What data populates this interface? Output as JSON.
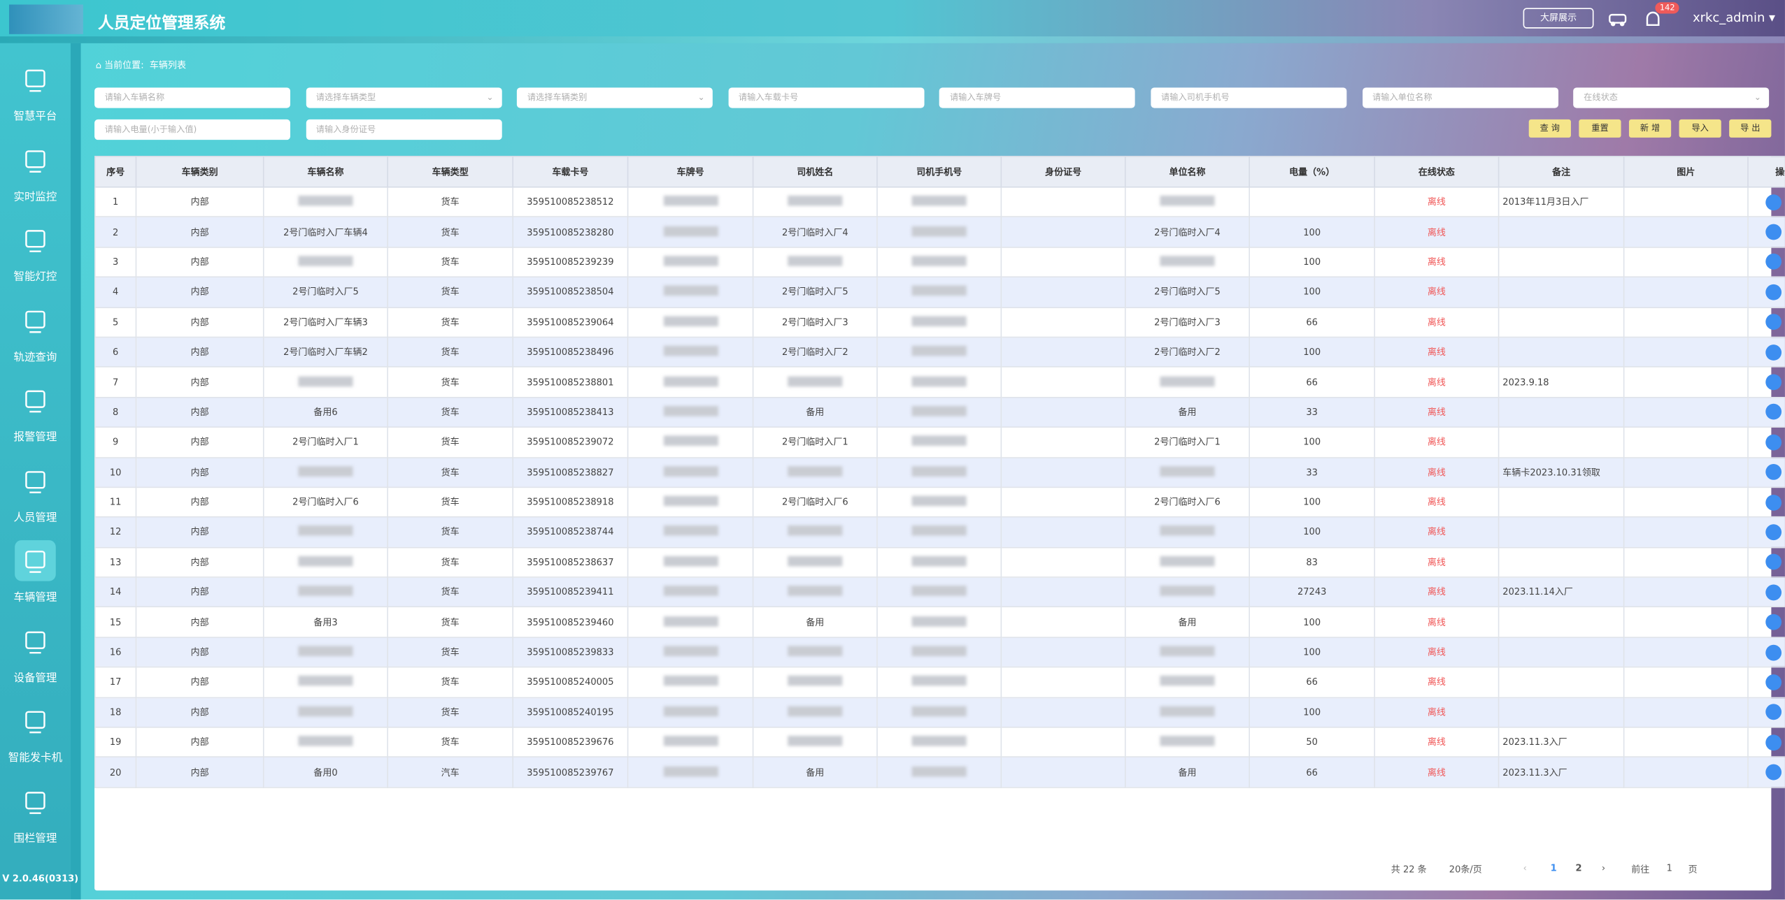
{
  "header": {
    "title": "人员定位管理系统",
    "screen_button": "大屏展示",
    "alarm_count": "142",
    "user": "xrkc_admin"
  },
  "sidebar": {
    "items": [
      "智慧平台",
      "实时监控",
      "智能灯控",
      "轨迹查询",
      "报警管理",
      "人员管理",
      "车辆管理",
      "设备管理",
      "智能发卡机",
      "围栏管理"
    ],
    "version": "V 2.0.46(0313)"
  },
  "breadcrumb": {
    "label": "当前位置:",
    "current": "车辆列表"
  },
  "filters": [
    "请输入车辆名称",
    "请选择车辆类型",
    "请选择车辆类别",
    "请输入车载卡号",
    "请输入车牌号",
    "请输入司机手机号",
    "请输入单位名称",
    "在线状态",
    "请输入电量(小于输入值)",
    "请输入身份证号"
  ],
  "buttons": [
    "查 询",
    "重置",
    "新 增",
    "导入",
    "导 出"
  ],
  "table": {
    "columns": [
      "序号",
      "车辆类别",
      "车辆名称",
      "车辆类型",
      "车载卡号",
      "车牌号",
      "司机姓名",
      "司机手机号",
      "身份证号",
      "单位名称",
      "电量（%）",
      "在线状态",
      "备注",
      "图片",
      "操作"
    ],
    "rows": [
      [
        "1",
        "内部",
        null,
        "货车",
        "359510085238512",
        null,
        null,
        null,
        null,
        null,
        null,
        "离线",
        "2013年11月3日入厂"
      ],
      [
        "2",
        "内部",
        "2号门临时入厂车辆4",
        "货车",
        "359510085238280",
        null,
        "2号门临时入厂4",
        null,
        null,
        "2号门临时入厂4",
        "100",
        "离线",
        null
      ],
      [
        "3",
        "内部",
        null,
        "货车",
        "359510085239239",
        null,
        null,
        null,
        null,
        null,
        "100",
        "离线",
        null
      ],
      [
        "4",
        "内部",
        "2号门临时入厂5",
        "货车",
        "359510085238504",
        null,
        "2号门临时入厂5",
        null,
        null,
        "2号门临时入厂5",
        "100",
        "离线",
        null
      ],
      [
        "5",
        "内部",
        "2号门临时入厂车辆3",
        "货车",
        "359510085239064",
        null,
        "2号门临时入厂3",
        null,
        null,
        "2号门临时入厂3",
        "66",
        "离线",
        null
      ],
      [
        "6",
        "内部",
        "2号门临时入厂车辆2",
        "货车",
        "359510085238496",
        null,
        "2号门临时入厂2",
        null,
        null,
        "2号门临时入厂2",
        "100",
        "离线",
        null
      ],
      [
        "7",
        "内部",
        null,
        "货车",
        "359510085238801",
        null,
        null,
        null,
        null,
        null,
        "66",
        "离线",
        "2023.9.18"
      ],
      [
        "8",
        "内部",
        "备用6",
        "货车",
        "359510085238413",
        null,
        "备用",
        null,
        null,
        "备用",
        "33",
        "离线",
        null
      ],
      [
        "9",
        "内部",
        "2号门临时入厂1",
        "货车",
        "359510085239072",
        null,
        "2号门临时入厂1",
        null,
        null,
        "2号门临时入厂1",
        "100",
        "离线",
        null
      ],
      [
        "10",
        "内部",
        null,
        "货车",
        "359510085238827",
        null,
        null,
        null,
        null,
        null,
        "33",
        "离线",
        "车辆卡2023.10.31领取"
      ],
      [
        "11",
        "内部",
        "2号门临时入厂6",
        "货车",
        "359510085238918",
        null,
        "2号门临时入厂6",
        null,
        null,
        "2号门临时入厂6",
        "100",
        "离线",
        null
      ],
      [
        "12",
        "内部",
        null,
        "货车",
        "359510085238744",
        null,
        null,
        null,
        null,
        null,
        "100",
        "离线",
        null
      ],
      [
        "13",
        "内部",
        null,
        "货车",
        "359510085238637",
        null,
        null,
        null,
        null,
        null,
        "83",
        "离线",
        null
      ],
      [
        "14",
        "内部",
        null,
        "货车",
        "359510085239411",
        null,
        null,
        null,
        null,
        null,
        "27243",
        "离线",
        "2023.11.14入厂"
      ],
      [
        "15",
        "内部",
        "备用3",
        "货车",
        "359510085239460",
        null,
        "备用",
        null,
        null,
        "备用",
        "100",
        "离线",
        null
      ],
      [
        "16",
        "内部",
        null,
        "货车",
        "359510085239833",
        null,
        null,
        null,
        null,
        null,
        "100",
        "离线",
        null
      ],
      [
        "17",
        "内部",
        null,
        "货车",
        "359510085240005",
        null,
        null,
        null,
        null,
        null,
        "66",
        "离线",
        null
      ],
      [
        "18",
        "内部",
        null,
        "货车",
        "359510085240195",
        null,
        null,
        null,
        null,
        null,
        "100",
        "离线",
        null
      ],
      [
        "19",
        "内部",
        null,
        "货车",
        "359510085239676",
        null,
        null,
        null,
        null,
        null,
        "50",
        "离线",
        "2023.11.3入厂"
      ],
      [
        "20",
        "内部",
        "备用0",
        "汽车",
        "359510085239767",
        null,
        "备用",
        null,
        null,
        "备用",
        "66",
        "离线",
        "2023.11.3入厂"
      ]
    ]
  },
  "pagination": {
    "total": "共 22 条",
    "page_size": "20条/页",
    "pages": [
      "1",
      "2"
    ],
    "goto_label": "前往",
    "goto_value": "1",
    "page_unit": "页"
  }
}
